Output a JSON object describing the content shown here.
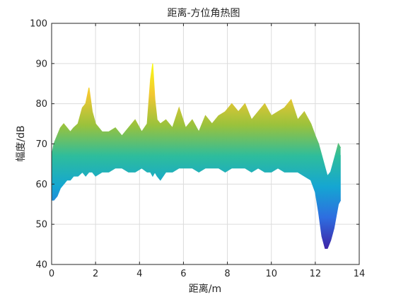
{
  "chart_data": {
    "type": "area",
    "title": "距离-方位角热图",
    "xlabel": "距离/m",
    "ylabel": "幅度/dB",
    "xlim": [
      0,
      14
    ],
    "ylim": [
      40,
      100
    ],
    "xticks": [
      0,
      2,
      4,
      6,
      8,
      10,
      12,
      14
    ],
    "yticks": [
      40,
      50,
      60,
      70,
      80,
      90,
      100
    ],
    "grid": true,
    "colormap": [
      "#3e26a8",
      "#2e6ee0",
      "#15a6d2",
      "#2ebd9c",
      "#9ac23c",
      "#f2c732",
      "#f9fb14"
    ],
    "color_range_db": [
      44,
      90
    ],
    "series": [
      {
        "x": [
          0.0,
          0.1,
          0.25,
          0.4,
          0.55,
          0.7,
          0.85,
          1.0,
          1.2,
          1.4,
          1.55,
          1.7,
          1.85,
          2.0,
          2.3,
          2.6,
          2.9,
          3.2,
          3.5,
          3.8,
          4.1,
          4.35,
          4.5,
          4.6,
          4.7,
          4.8,
          4.95,
          5.2,
          5.5,
          5.8,
          6.1,
          6.4,
          6.7,
          7.0,
          7.3,
          7.6,
          7.9,
          8.2,
          8.5,
          8.8,
          9.1,
          9.4,
          9.7,
          10.0,
          10.3,
          10.6,
          10.9,
          11.2,
          11.5,
          11.8,
          12.0,
          12.15,
          12.3,
          12.45,
          12.55,
          12.7,
          12.85,
          12.95,
          13.05,
          13.15
        ],
        "upper": [
          67,
          70,
          72,
          74,
          75,
          74,
          73,
          74,
          75,
          79,
          80,
          84,
          78,
          75,
          73,
          73,
          74,
          72,
          74,
          76,
          73,
          75,
          86,
          90,
          81,
          76,
          75,
          76,
          74,
          79,
          74,
          76,
          73,
          77,
          75,
          77,
          78,
          80,
          78,
          80,
          76,
          78,
          80,
          77,
          78,
          79,
          81,
          76,
          78,
          75,
          72,
          70,
          67,
          64,
          62,
          63,
          66,
          68,
          70,
          69
        ],
        "lower": [
          56,
          56,
          57,
          59,
          60,
          61,
          61,
          62,
          62,
          63,
          62,
          63,
          63,
          62,
          63,
          63,
          64,
          64,
          63,
          63,
          64,
          63,
          63,
          62,
          63,
          62,
          61,
          63,
          63,
          64,
          64,
          64,
          63,
          64,
          64,
          64,
          63,
          64,
          64,
          64,
          63,
          64,
          63,
          63,
          64,
          63,
          63,
          63,
          62,
          61,
          58,
          53,
          47,
          44,
          44,
          46,
          49,
          52,
          55,
          56
        ]
      }
    ]
  }
}
